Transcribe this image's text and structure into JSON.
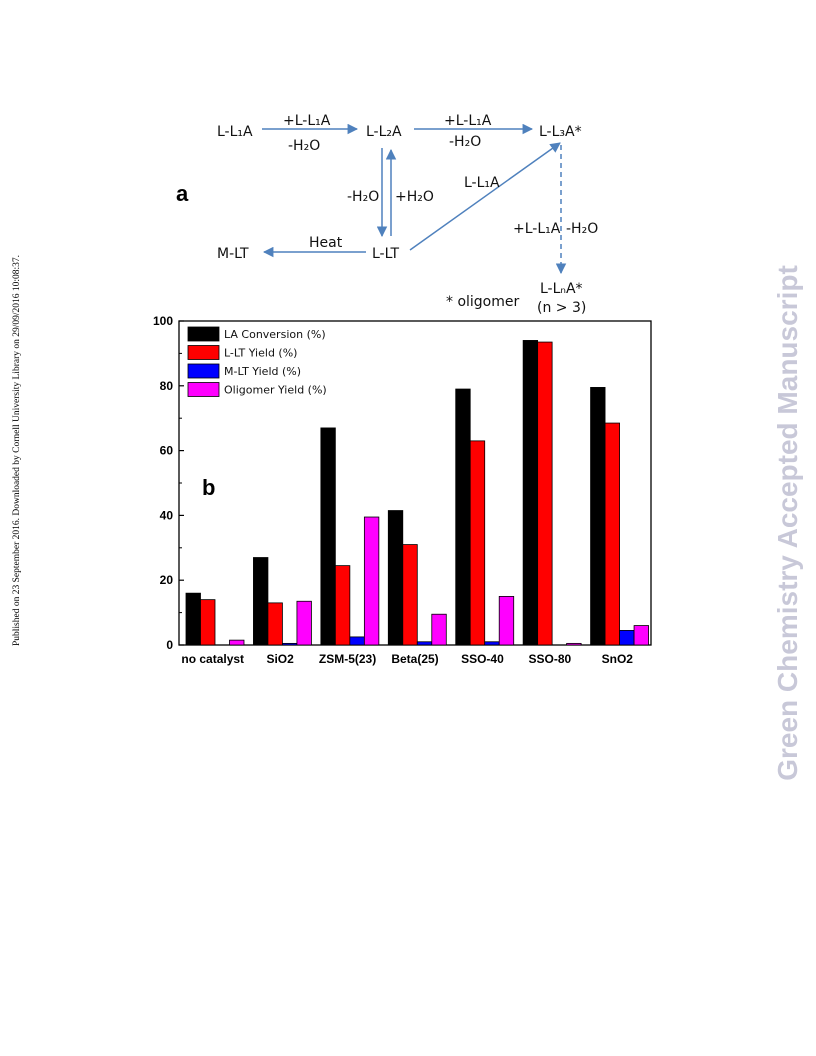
{
  "side_note": "Published on 23 September 2016. Downloaded by Cornell University Library on 29/09/2016 10:08:37.",
  "watermark": "Green Chemistry Accepted Manuscript",
  "scheme": {
    "panel_label": "a",
    "nodes": {
      "l_l1a": "L-L₁A",
      "l_l2a": "L-L₂A",
      "l_l3a": "L-L₃A*",
      "m_lt": "M-LT",
      "l_lt": "L-LT",
      "l_lna": "L-LₙA*",
      "n_gt_3": "(n > 3)"
    },
    "labels": {
      "step1_top": "+L-L₁A",
      "step1_bottom": "-H₂O",
      "step2_top": "+L-L₁A",
      "step2_bottom": "-H₂O",
      "hydrolysis_left": "-H₂O",
      "hydrolysis_right": "+H₂O",
      "diagonal": "L-L₁A",
      "heat": "Heat",
      "oligo_left": "+L-L₁A",
      "oligo_right": "-H₂O",
      "footnote": "* oligomer"
    }
  },
  "chart_data": {
    "type": "bar",
    "panel_label": "b",
    "categories": [
      "no catalyst",
      "SiO2",
      "ZSM-5(23)",
      "Beta(25)",
      "SSO-40",
      "SSO-80",
      "SnO2"
    ],
    "series": [
      {
        "name": "LA Conversion (%)",
        "color": "#000000",
        "values": [
          16,
          27,
          67,
          41.5,
          79,
          94,
          79.5
        ]
      },
      {
        "name": "L-LT Yield (%)",
        "color": "#ff0000",
        "values": [
          14,
          13,
          24.5,
          31,
          63,
          93.5,
          68.5
        ]
      },
      {
        "name": "M-LT Yield (%)",
        "color": "#0000ff",
        "values": [
          0,
          0.5,
          2.5,
          1,
          1,
          0,
          4.5
        ]
      },
      {
        "name": "Oligomer Yield (%)",
        "color": "#ff00ff",
        "values": [
          1.5,
          13.5,
          39.5,
          9.5,
          15,
          0.5,
          6
        ]
      }
    ],
    "yticks": [
      0,
      20,
      40,
      60,
      80,
      100
    ],
    "ylim": [
      0,
      100
    ],
    "legend_position": "top-left",
    "grid": false
  }
}
